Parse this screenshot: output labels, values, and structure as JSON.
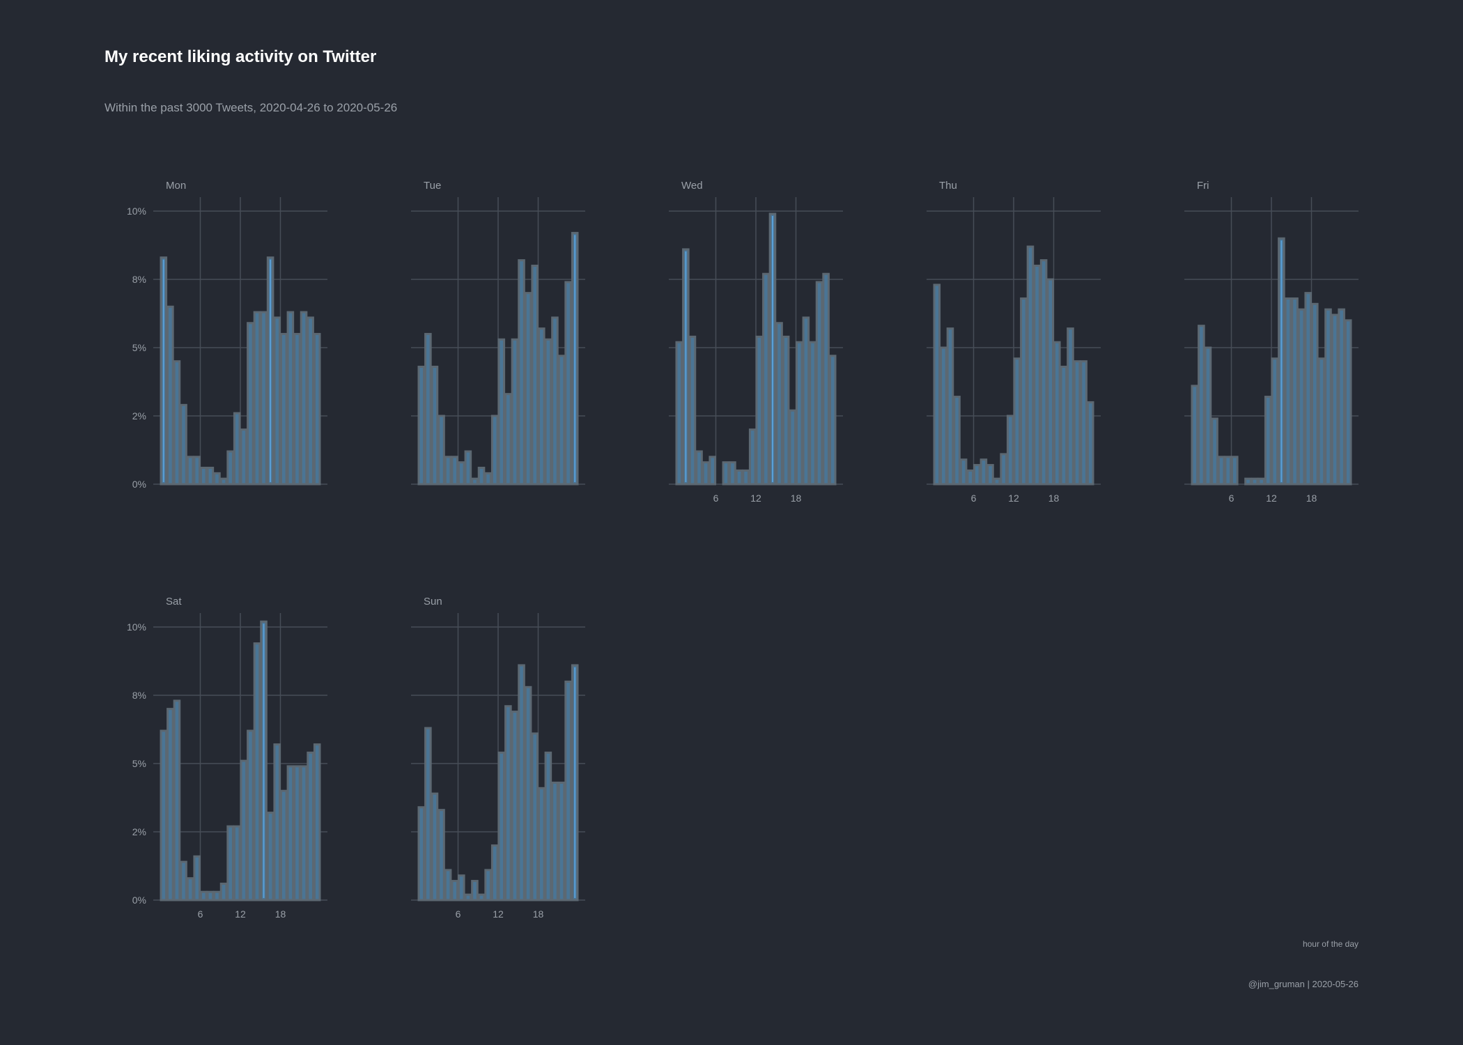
{
  "title": "My recent liking activity on Twitter",
  "subtitle": "Within the past 3000 Tweets, 2020-04-26 to 2020-05-26",
  "xlabel": "hour of the day",
  "caption": "@jim_gruman | 2020-05-26",
  "colors": {
    "background": "#252932",
    "bar_fill": "#4a7595",
    "bar_stroke": "#5c6872",
    "bar_highlight": "#5aa0d8",
    "grid": "#474d57",
    "text": "#9aa0a8"
  },
  "chart_data": {
    "type": "bar",
    "facet": "weekday",
    "x": [
      0,
      1,
      2,
      3,
      4,
      5,
      6,
      7,
      8,
      9,
      10,
      11,
      12,
      13,
      14,
      15,
      16,
      17,
      18,
      19,
      20,
      21,
      22,
      23
    ],
    "xticks": [
      6,
      12,
      18
    ],
    "xtick_labels": [
      "6",
      "12",
      "18"
    ],
    "ylim": [
      0,
      10
    ],
    "yticks": [
      0,
      2.5,
      5,
      7.5,
      10
    ],
    "ytick_labels": [
      "0%",
      "2%",
      "5%",
      "8%",
      "10%"
    ],
    "panels": [
      {
        "name": "Mon",
        "values": [
          8.3,
          6.5,
          4.5,
          2.9,
          1.0,
          1.0,
          0.6,
          0.6,
          0.4,
          0.2,
          1.2,
          2.6,
          2.0,
          5.9,
          6.3,
          6.3,
          8.3,
          6.1,
          5.5,
          6.3,
          5.5,
          6.3,
          6.1,
          5.5
        ]
      },
      {
        "name": "Tue",
        "values": [
          4.3,
          5.5,
          4.3,
          2.5,
          1.0,
          1.0,
          0.8,
          1.2,
          0.2,
          0.6,
          0.4,
          2.5,
          5.3,
          3.3,
          5.3,
          8.2,
          7.0,
          8.0,
          5.7,
          5.3,
          6.1,
          4.7,
          7.4,
          9.2
        ]
      },
      {
        "name": "Wed",
        "values": [
          5.2,
          8.6,
          5.4,
          1.2,
          0.8,
          1.0,
          0.0,
          0.8,
          0.8,
          0.5,
          0.5,
          2.0,
          5.4,
          7.7,
          9.9,
          5.9,
          5.4,
          2.7,
          5.2,
          6.1,
          5.2,
          7.4,
          7.7,
          4.7
        ]
      },
      {
        "name": "Thu",
        "values": [
          7.3,
          5.0,
          5.7,
          3.2,
          0.9,
          0.5,
          0.7,
          0.9,
          0.7,
          0.2,
          1.1,
          2.5,
          4.6,
          6.8,
          8.7,
          8.0,
          8.2,
          7.5,
          5.2,
          4.3,
          5.7,
          4.5,
          4.5,
          3.0
        ]
      },
      {
        "name": "Fri",
        "values": [
          3.6,
          5.8,
          5.0,
          2.4,
          1.0,
          1.0,
          1.0,
          0.0,
          0.2,
          0.2,
          0.2,
          3.2,
          4.6,
          9.0,
          6.8,
          6.8,
          6.4,
          7.0,
          6.6,
          4.6,
          6.4,
          6.2,
          6.4,
          6.0
        ]
      },
      {
        "name": "Sat",
        "values": [
          6.2,
          7.0,
          7.3,
          1.4,
          0.8,
          1.6,
          0.3,
          0.3,
          0.3,
          0.6,
          2.7,
          2.7,
          5.1,
          6.2,
          9.4,
          10.2,
          3.2,
          5.7,
          4.0,
          4.9,
          4.9,
          4.9,
          5.4,
          5.7
        ]
      },
      {
        "name": "Sun",
        "values": [
          3.4,
          6.3,
          3.9,
          3.3,
          1.1,
          0.7,
          0.9,
          0.2,
          0.7,
          0.2,
          1.1,
          2.0,
          5.4,
          7.1,
          6.9,
          8.6,
          7.8,
          6.1,
          4.1,
          5.4,
          4.3,
          4.3,
          8.0,
          8.6
        ]
      }
    ],
    "highlights": {
      "Mon": [
        0,
        16
      ],
      "Tue": [
        23
      ],
      "Wed": [
        1,
        14
      ],
      "Thu": [],
      "Fri": [
        13
      ],
      "Sat": [
        15
      ],
      "Sun": [
        23
      ]
    },
    "grid": true,
    "legend": "none"
  }
}
